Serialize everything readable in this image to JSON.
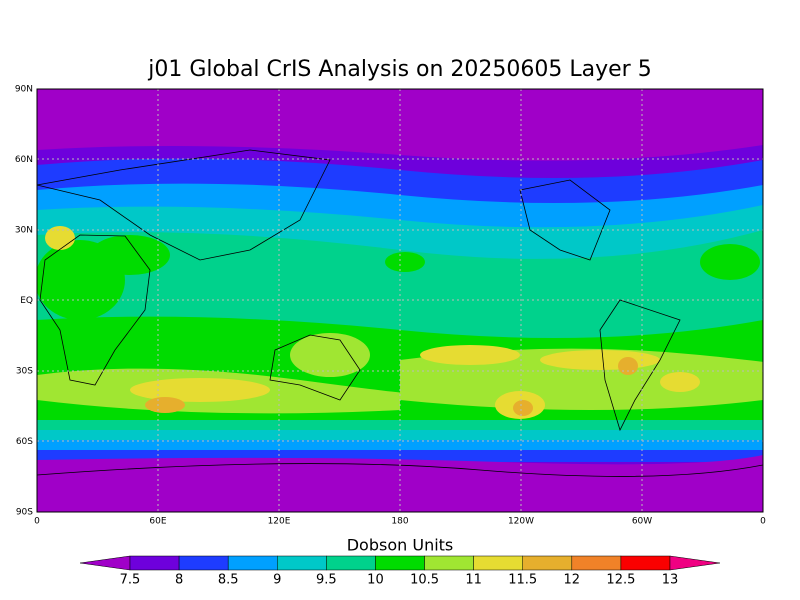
{
  "title": "j01 Global CrIS Analysis on 20250605 Layer 5",
  "map": {
    "lat_ticks": [
      "90N",
      "60N",
      "30N",
      "EQ",
      "30S",
      "60S",
      "90S"
    ],
    "lon_ticks": [
      "0",
      "60E",
      "120E",
      "180",
      "120W",
      "60W",
      "0"
    ]
  },
  "colorbar": {
    "label": "Dobson Units",
    "levels": [
      7.5,
      8,
      8.5,
      9,
      9.5,
      10,
      10.5,
      11,
      11.5,
      12,
      12.5,
      13
    ],
    "colors": [
      "#a000c8",
      "#6e00dc",
      "#1e3cff",
      "#00a0ff",
      "#00c8c8",
      "#00d28c",
      "#00dc00",
      "#a0e632",
      "#e6dc32",
      "#e6af2d",
      "#f08228",
      "#fa0000",
      "#f00082"
    ]
  }
}
